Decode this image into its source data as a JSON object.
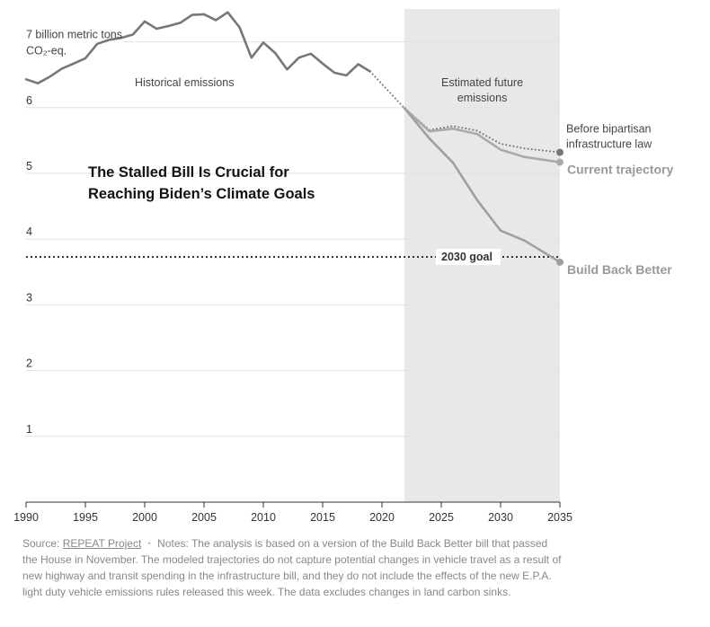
{
  "chart_data": {
    "type": "line",
    "title": [
      "The Stalled Bill Is Crucial for",
      "Reaching Biden’s Climate Goals"
    ],
    "ylabel": [
      "7 billion metric tons",
      "CO₂-eq."
    ],
    "xlabel": "",
    "xlim": [
      1990,
      2035
    ],
    "ylim": [
      0,
      7.5
    ],
    "x_ticks": [
      1990,
      1995,
      2000,
      2005,
      2010,
      2015,
      2020,
      2025,
      2030,
      2035
    ],
    "y_ticks": [
      1,
      2,
      3,
      4,
      5,
      6
    ],
    "y_tick_labels": [
      "1",
      "2",
      "3",
      "4",
      "5",
      "6"
    ],
    "grid": "horizontal",
    "shaded_region": {
      "x_start": 2021.9,
      "x_end": 2035,
      "label": [
        "Estimated future",
        "emissions"
      ]
    },
    "annotations": {
      "historical": "Historical emissions",
      "goal": "2030 goal",
      "goal_value": 3.73
    },
    "series": [
      {
        "name": "Historical emissions",
        "style": "solid",
        "color": "#777777",
        "points": [
          [
            1990,
            6.43
          ],
          [
            1991,
            6.37
          ],
          [
            1992,
            6.47
          ],
          [
            1993,
            6.59
          ],
          [
            1994,
            6.67
          ],
          [
            1995,
            6.75
          ],
          [
            1996,
            6.97
          ],
          [
            1997,
            7.03
          ],
          [
            1998,
            7.06
          ],
          [
            1999,
            7.11
          ],
          [
            2000,
            7.31
          ],
          [
            2001,
            7.2
          ],
          [
            2002,
            7.24
          ],
          [
            2003,
            7.29
          ],
          [
            2004,
            7.41
          ],
          [
            2005,
            7.42
          ],
          [
            2006,
            7.33
          ],
          [
            2007,
            7.45
          ],
          [
            2008,
            7.22
          ],
          [
            2009,
            6.76
          ],
          [
            2010,
            6.99
          ],
          [
            2011,
            6.83
          ],
          [
            2012,
            6.58
          ],
          [
            2013,
            6.76
          ],
          [
            2014,
            6.82
          ],
          [
            2015,
            6.67
          ],
          [
            2016,
            6.53
          ],
          [
            2017,
            6.49
          ],
          [
            2018,
            6.66
          ],
          [
            2019,
            6.55
          ]
        ]
      },
      {
        "name": "Historical-to-estimate bridge",
        "style": "dotted",
        "color": "#777777",
        "points": [
          [
            2019,
            6.55
          ],
          [
            2021.9,
            5.99
          ]
        ]
      },
      {
        "name": "Before bipartisan infrastructure law",
        "label": [
          "Before bipartisan",
          "infrastructure law"
        ],
        "style": "dotted",
        "color": "#777777",
        "points": [
          [
            2021.9,
            5.99
          ],
          [
            2024,
            5.66
          ],
          [
            2026,
            5.72
          ],
          [
            2028,
            5.65
          ],
          [
            2030,
            5.45
          ],
          [
            2032,
            5.38
          ],
          [
            2035,
            5.32
          ]
        ]
      },
      {
        "name": "Current trajectory",
        "label": [
          "Current trajectory"
        ],
        "style": "solid",
        "color": "#aaaaaa",
        "points": [
          [
            2021.9,
            5.99
          ],
          [
            2024,
            5.64
          ],
          [
            2026,
            5.68
          ],
          [
            2028,
            5.6
          ],
          [
            2030,
            5.36
          ],
          [
            2032,
            5.25
          ],
          [
            2035,
            5.17
          ]
        ]
      },
      {
        "name": "Build Back Better",
        "label": [
          "Build Back Better"
        ],
        "style": "solid",
        "color": "#a0a0a0",
        "points": [
          [
            2021.9,
            5.99
          ],
          [
            2024,
            5.53
          ],
          [
            2026,
            5.16
          ],
          [
            2028,
            4.6
          ],
          [
            2030,
            4.13
          ],
          [
            2032,
            3.98
          ],
          [
            2035,
            3.65
          ]
        ]
      }
    ]
  },
  "notes": {
    "source_prefix": "Source: ",
    "source_link": "REPEAT Project",
    "separator": "•",
    "text": "Notes: The analysis is based on a version of the Build Back Better bill that passed the House in November. The modeled trajectories do not capture potential changes in vehicle travel as a result of new highway and transit spending in the infrastructure bill, and they do not include the effects of the new E.P.A. light duty vehicle emissions rules released this week. The data excludes changes in land carbon sinks."
  },
  "colors": {
    "shade": "#e8e8e8",
    "grid": "#e2e2e2",
    "axis": "#333333",
    "dark_line": "#777777",
    "light_line": "#aaaaaa"
  }
}
